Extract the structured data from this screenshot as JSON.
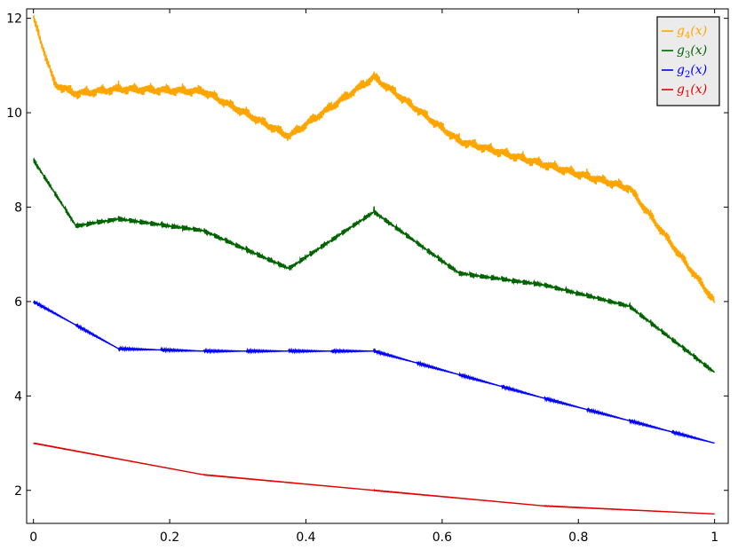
{
  "chart_data": {
    "type": "line",
    "title": "",
    "xlabel": "",
    "ylabel": "",
    "xlim": [
      -0.01,
      1.02
    ],
    "ylim": [
      1.3,
      12.2
    ],
    "x_ticks": [
      0,
      0.2,
      0.4,
      0.6,
      0.8,
      1
    ],
    "x_tick_labels": [
      "0",
      "0.2",
      "0.4",
      "0.6",
      "0.8",
      "1"
    ],
    "y_ticks": [
      2,
      4,
      6,
      8,
      10,
      12
    ],
    "y_tick_labels": [
      "2",
      "4",
      "6",
      "8",
      "10",
      "12"
    ],
    "grid": false,
    "legend_position": "top-right",
    "series": [
      {
        "name": "g4(x)",
        "label_base": "g",
        "label_sub": "4",
        "label_arg": "(x)",
        "color": "#ffa500",
        "dyadic_depth": 9,
        "points": [
          [
            0,
            12
          ],
          [
            0.03125,
            10.6
          ],
          [
            0.0625,
            10.4
          ],
          [
            0.125,
            10.5
          ],
          [
            0.25,
            10.45
          ],
          [
            0.375,
            9.5
          ],
          [
            0.5,
            10.75
          ],
          [
            0.625,
            9.4
          ],
          [
            0.75,
            8.9
          ],
          [
            0.875,
            8.4
          ],
          [
            1,
            6.0
          ]
        ]
      },
      {
        "name": "g3(x)",
        "label_base": "g",
        "label_sub": "3",
        "label_arg": "(x)",
        "color": "#006400",
        "dyadic_depth": 6,
        "points": [
          [
            0,
            9
          ],
          [
            0.0625,
            7.6
          ],
          [
            0.125,
            7.75
          ],
          [
            0.25,
            7.5
          ],
          [
            0.375,
            6.7
          ],
          [
            0.5,
            7.9
          ],
          [
            0.625,
            6.6
          ],
          [
            0.75,
            6.35
          ],
          [
            0.875,
            5.9
          ],
          [
            1,
            4.5
          ]
        ]
      },
      {
        "name": "g2(x)",
        "label_base": "g",
        "label_sub": "2",
        "label_arg": "(x)",
        "color": "#0000ff",
        "dyadic_depth": 4,
        "points": [
          [
            0,
            6
          ],
          [
            0.125,
            5.0
          ],
          [
            0.25,
            4.95
          ],
          [
            0.5,
            4.95
          ],
          [
            0.75,
            3.95
          ],
          [
            1,
            3.0
          ]
        ]
      },
      {
        "name": "g1(x)",
        "label_base": "g",
        "label_sub": "1",
        "label_arg": "(x)",
        "color": "#e00000",
        "dyadic_depth": 2,
        "points": [
          [
            0,
            3
          ],
          [
            0.25,
            2.33
          ],
          [
            0.5,
            2.0
          ],
          [
            0.75,
            1.67
          ],
          [
            1,
            1.5
          ]
        ]
      }
    ]
  }
}
